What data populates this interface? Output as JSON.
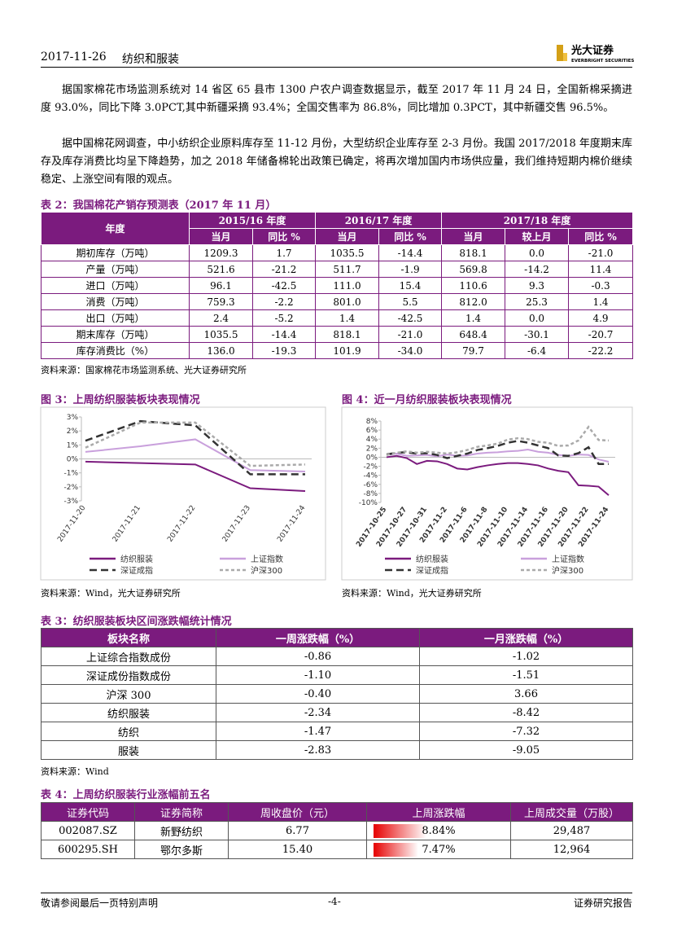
{
  "header": {
    "date": "2017-11-26",
    "section": "纺织和服装",
    "logo_cn": "光大证券",
    "logo_en": "EVERBRIGHT SECURITIES"
  },
  "paragraphs": [
    "据国家棉花市场监测系统对 14 省区 65 县市 1300 户农户调查数据显示，截至 2017 年 11 月 24 日，全国新棉采摘进度 93.0%，同比下降 3.0PCT,其中新疆采摘 93.4%；全国交售率为 86.8%，同比增加 0.3PCT，其中新疆交售 96.5%。",
    "据中国棉花网调查，中小纺织企业原料库存至 11-12 月份，大型纺织企业库存至 2-3 月份。我国 2017/2018 年度期末库存及库存消费比均呈下降趋势，加之 2018 年储备棉轮出政策已确定，将再次增加国内市场供应量，我们维持短期内棉价继续稳定、上涨空间有限的观点。"
  ],
  "table2": {
    "title": "表 2：我国棉花产销存预测表（2017 年 11 月）",
    "header_row1": [
      "年度",
      "2015/16 年度",
      "2016/17 年度",
      "2017/18 年度"
    ],
    "header_row2": [
      "当月",
      "同比 %",
      "当月",
      "同比 %",
      "当月",
      "较上月",
      "同比 %"
    ],
    "rows": [
      [
        "期初库存（万吨）",
        "1209.3",
        "1.7",
        "1035.5",
        "-14.4",
        "818.1",
        "0.0",
        "-21.0"
      ],
      [
        "产量（万吨）",
        "521.6",
        "-21.2",
        "511.7",
        "-1.9",
        "569.8",
        "-14.2",
        "11.4"
      ],
      [
        "进口（万吨）",
        "96.1",
        "-42.5",
        "111.0",
        "15.4",
        "110.6",
        "9.3",
        "-0.3"
      ],
      [
        "消费（万吨）",
        "759.3",
        "-2.2",
        "801.0",
        "5.5",
        "812.0",
        "25.3",
        "1.4"
      ],
      [
        "出口（万吨）",
        "2.4",
        "-5.2",
        "1.4",
        "-42.5",
        "1.4",
        "0.0",
        "4.9"
      ],
      [
        "期末库存（万吨）",
        "1035.5",
        "-14.4",
        "818.1",
        "-21.0",
        "648.4",
        "-30.1",
        "-20.7"
      ],
      [
        "库存消费比（%）",
        "136.0",
        "-19.3",
        "101.9",
        "-34.0",
        "79.7",
        "-6.4",
        "-22.2"
      ]
    ],
    "source": "资料来源：国家棉花市场监测系统、光大证券研究所"
  },
  "chart_data": [
    {
      "type": "line",
      "title": "图 3：上周纺织服装板块表现情况",
      "categories": [
        "2017-11-20",
        "2017-11-21",
        "2017-11-22",
        "2017-11-23",
        "2017-11-24"
      ],
      "ylim": [
        -3,
        3
      ],
      "yticks": [
        {
          "value": 3,
          "label": "3%"
        },
        {
          "value": 2,
          "label": "2%"
        },
        {
          "value": 1,
          "label": "1%"
        },
        {
          "value": 0,
          "label": "0%"
        },
        {
          "value": -1,
          "label": "-1%"
        },
        {
          "value": -2,
          "label": "-2%"
        },
        {
          "value": -3,
          "label": "-3%"
        }
      ],
      "series": [
        {
          "name": "纺织服装",
          "color": "#7b1b7e",
          "values": [
            -0.2,
            -0.3,
            -0.4,
            -2.1,
            -2.3
          ]
        },
        {
          "name": "上证指数",
          "color": "#c9a0dc",
          "values": [
            0.5,
            0.9,
            1.4,
            -0.8,
            -0.9
          ]
        },
        {
          "name": "深证成指",
          "color": "#333333",
          "dash": "9,5",
          "values": [
            1.3,
            2.7,
            2.4,
            -1.1,
            -1.1
          ]
        },
        {
          "name": "沪深300",
          "color": "#aaaaaa",
          "dash": "4,3",
          "values": [
            0.8,
            2.6,
            2.6,
            -0.5,
            -0.4
          ]
        }
      ],
      "source": "资料来源：Wind，光大证券研究所"
    },
    {
      "type": "line",
      "title": "图 4：近一月纺织服装板块表现情况",
      "categories": [
        "2017-10-25",
        null,
        "2017-10-27",
        null,
        "2017-10-31",
        null,
        "2017-11-2",
        null,
        "2017-11-6",
        null,
        "2017-11-8",
        null,
        "2017-11-10",
        null,
        "2017-11-14",
        null,
        "2017-11-16",
        null,
        "2017-11-20",
        null,
        "2017-11-22",
        null,
        "2017-11-24"
      ],
      "ylim": [
        -10,
        8
      ],
      "yticks": [
        {
          "value": 8,
          "label": "8%"
        },
        {
          "value": 6,
          "label": "6%"
        },
        {
          "value": 4,
          "label": "4%"
        },
        {
          "value": 2,
          "label": "2%"
        },
        {
          "value": 0,
          "label": "0%"
        },
        {
          "value": -2,
          "label": "-2%"
        },
        {
          "value": -4,
          "label": "-4%"
        },
        {
          "value": -6,
          "label": "-6%"
        },
        {
          "value": -8,
          "label": "-8%"
        },
        {
          "value": -10,
          "label": "-10%"
        }
      ],
      "series": [
        {
          "name": "纺织服装",
          "color": "#7b1b7e",
          "values": [
            0,
            0.3,
            -0.2,
            -1.5,
            -0.8,
            -0.9,
            -1.5,
            -2.5,
            -2.7,
            -2.2,
            -1.8,
            -1.5,
            -1.3,
            -1.3,
            -1.5,
            -1.8,
            -2.5,
            -3.0,
            -3.3,
            -6.2,
            -6.3,
            -6.5,
            -8.4
          ]
        },
        {
          "name": "上证指数",
          "color": "#c9a0dc",
          "values": [
            0.5,
            0.8,
            0.3,
            0.4,
            0.5,
            0.2,
            0.6,
            0.3,
            0.4,
            0.8,
            1.0,
            1.1,
            1.3,
            1.4,
            1.7,
            1.2,
            1.0,
            0.5,
            0.3,
            0.6,
            0.5,
            -0.5,
            -1.0
          ]
        },
        {
          "name": "深证成指",
          "color": "#333333",
          "dash": "9,5",
          "values": [
            0.6,
            1.0,
            1.1,
            0.8,
            0.9,
            0.5,
            -0.2,
            0.3,
            0.8,
            1.6,
            2.0,
            2.5,
            3.2,
            3.6,
            3.2,
            2.6,
            2.0,
            0.4,
            0.3,
            0.9,
            2.2,
            -1.5,
            -1.5
          ]
        },
        {
          "name": "沪深300",
          "color": "#aaaaaa",
          "dash": "4,3",
          "values": [
            0.5,
            1.0,
            1.3,
            1.0,
            1.2,
            1.0,
            0.8,
            1.1,
            1.6,
            2.3,
            2.6,
            3.0,
            3.9,
            4.2,
            4.0,
            3.4,
            3.2,
            2.5,
            2.6,
            3.7,
            6.7,
            3.8,
            3.7
          ]
        }
      ],
      "source": "资料来源：Wind，光大证券研究所"
    }
  ],
  "table3": {
    "title": "表 3：纺织服装板块区间涨跌幅统计情况",
    "header": [
      "板块名称",
      "一周涨跌幅（%）",
      "一月涨跌幅（%）"
    ],
    "rows": [
      [
        "上证综合指数成份",
        "-0.86",
        "-1.02"
      ],
      [
        "深证成份指数成份",
        "-1.10",
        "-1.51"
      ],
      [
        "沪深 300",
        "-0.40",
        "3.66"
      ],
      [
        "纺织服装",
        "-2.34",
        "-8.42"
      ],
      [
        "纺织",
        "-1.47",
        "-7.32"
      ],
      [
        "服装",
        "-2.83",
        "-9.05"
      ]
    ],
    "source": "资料来源：Wind"
  },
  "table4": {
    "title": "表 4：上周纺织服装行业涨幅前五名",
    "header": [
      "证券代码",
      "证券简称",
      "周收盘价（元）",
      "上周涨跌幅",
      "上周成交量（万股）"
    ],
    "rows": [
      [
        "002087.SZ",
        "新野纺织",
        "6.77",
        "8.84%",
        "29,487"
      ],
      [
        "600295.SH",
        "鄂尔多斯",
        "15.40",
        "7.47%",
        "12,964"
      ]
    ]
  },
  "footer": {
    "left": "敬请参阅最后一页特别声明",
    "center": "-4-",
    "right": "证券研究报告"
  }
}
